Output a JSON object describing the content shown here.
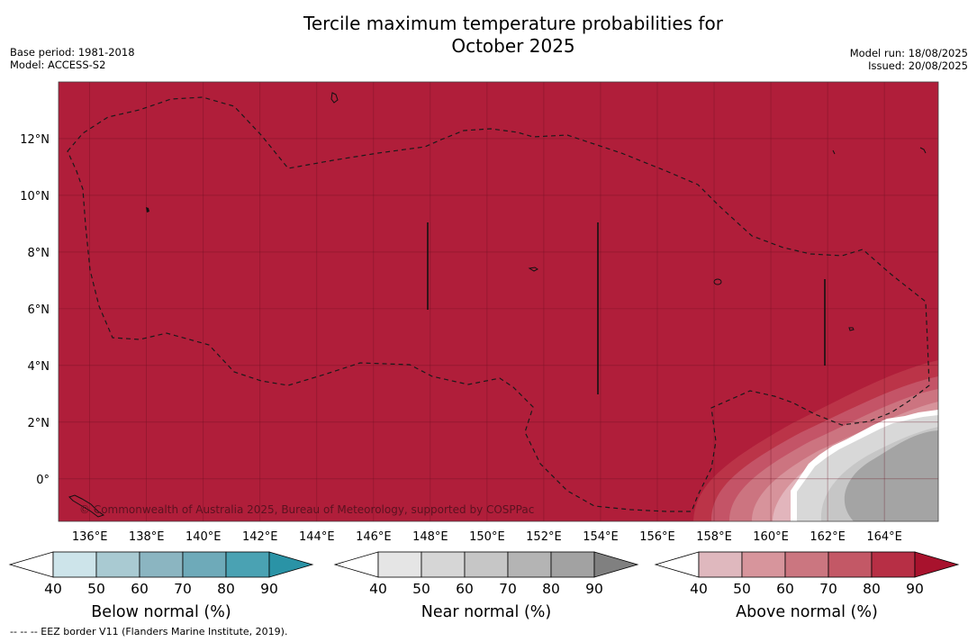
{
  "header": {
    "title_line1": "Tercile maximum temperature probabilities for",
    "title_line2": "October 2025",
    "base_period": "Base period: 1981-2018",
    "model": "Model: ACCESS-S2",
    "model_run": "Model run: 18/08/2025",
    "issued": "Issued: 20/08/2025"
  },
  "map": {
    "copyright": "© Commonwealth of Australia 2025, Bureau of Meteorology, supported by COSPPac",
    "background_color": "#b01e3a"
  },
  "chart_data": {
    "type": "heatmap",
    "title": "Tercile maximum temperature probabilities for October 2025",
    "x_ticks": [
      "136°E",
      "138°E",
      "140°E",
      "142°E",
      "144°E",
      "146°E",
      "148°E",
      "150°E",
      "152°E",
      "154°E",
      "156°E",
      "158°E",
      "160°E",
      "162°E",
      "164°E"
    ],
    "y_ticks": [
      "12°N",
      "10°N",
      "8°N",
      "6°N",
      "4°N",
      "2°N",
      "0°"
    ],
    "x_tick_values": [
      136,
      138,
      140,
      142,
      144,
      146,
      148,
      150,
      152,
      154,
      156,
      158,
      160,
      162,
      164
    ],
    "y_tick_values": [
      12,
      10,
      8,
      6,
      4,
      2,
      0
    ],
    "xlim": [
      134.9,
      165.9
    ],
    "ylim": [
      -1.5,
      14.0
    ],
    "grid": true,
    "dominant_category": "Above normal",
    "dominant_level": "80-90",
    "colorbars": [
      {
        "label": "Below normal (%)",
        "ticks": [
          "40",
          "50",
          "60",
          "70",
          "80",
          "90"
        ],
        "colors": [
          "#ffffff",
          "#cde4ea",
          "#a9cad2",
          "#8bb5c1",
          "#6eaab9",
          "#4aa2b3",
          "#2a93a6"
        ]
      },
      {
        "label": "Near normal (%)",
        "ticks": [
          "40",
          "50",
          "60",
          "70",
          "80",
          "90"
        ],
        "colors": [
          "#ffffff",
          "#e5e5e5",
          "#d6d6d6",
          "#c6c6c6",
          "#b4b4b4",
          "#a2a2a2",
          "#808080"
        ]
      },
      {
        "label": "Above normal (%)",
        "ticks": [
          "40",
          "50",
          "60",
          "70",
          "80",
          "90"
        ],
        "colors": [
          "#ffffff",
          "#dfb8be",
          "#d7959c",
          "#cb7680",
          "#c35866",
          "#b72f45",
          "#a8122d"
        ]
      }
    ]
  },
  "footer": {
    "legend_note": "--  --  -- EEZ border V11 (Flanders Marine Institute, 2019)."
  }
}
